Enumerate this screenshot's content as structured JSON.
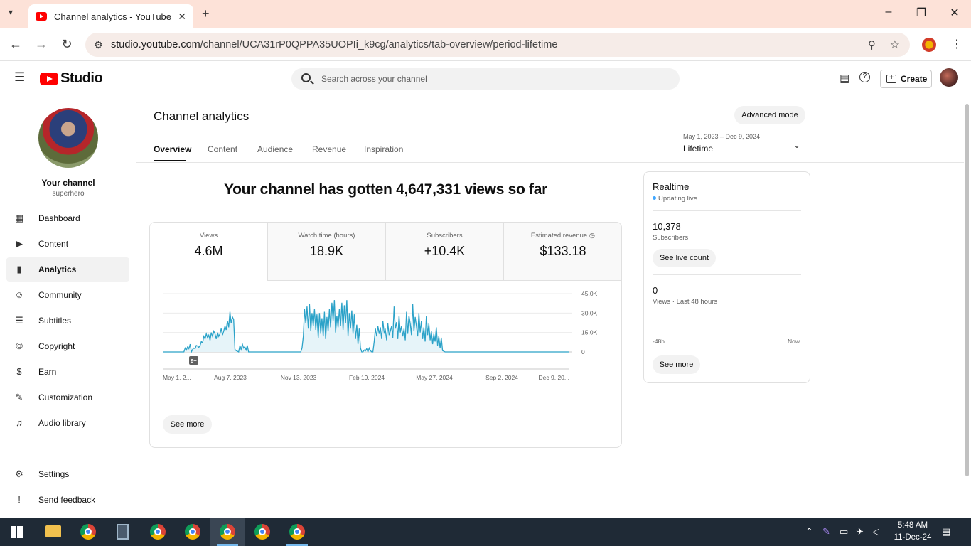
{
  "browser": {
    "tab_title": "Channel analytics - YouTube Studio",
    "url_domain": "studio.youtube.com",
    "url_path": "/channel/UCA31rP0QPPA35UOPIi_k9cg/analytics/tab-overview/period-lifetime"
  },
  "header": {
    "logo_text": "Studio",
    "search_placeholder": "Search across your channel",
    "create_label": "Create"
  },
  "sidebar": {
    "channel_title": "Your channel",
    "channel_handle": "superhero",
    "items": [
      {
        "label": "Dashboard",
        "icon": "dashboard-icon",
        "glyph": "▦"
      },
      {
        "label": "Content",
        "icon": "content-icon",
        "glyph": "▶"
      },
      {
        "label": "Analytics",
        "icon": "analytics-icon",
        "glyph": "▮"
      },
      {
        "label": "Community",
        "icon": "community-icon",
        "glyph": "☺"
      },
      {
        "label": "Subtitles",
        "icon": "subtitles-icon",
        "glyph": "☰"
      },
      {
        "label": "Copyright",
        "icon": "copyright-icon",
        "glyph": "©"
      },
      {
        "label": "Earn",
        "icon": "earn-icon",
        "glyph": "$"
      },
      {
        "label": "Customization",
        "icon": "customization-icon",
        "glyph": "✎"
      },
      {
        "label": "Audio library",
        "icon": "audio-library-icon",
        "glyph": "♫"
      }
    ],
    "bottom_items": [
      {
        "label": "Settings",
        "icon": "settings-icon",
        "glyph": "⚙"
      },
      {
        "label": "Send feedback",
        "icon": "feedback-icon",
        "glyph": "!"
      }
    ]
  },
  "main": {
    "title": "Channel analytics",
    "advanced_mode": "Advanced mode",
    "tabs": [
      "Overview",
      "Content",
      "Audience",
      "Revenue",
      "Inspiration"
    ],
    "period_range": "May 1, 2023 – Dec 9, 2024",
    "period_label": "Lifetime",
    "headline": "Your channel has gotten 4,647,331 views so far",
    "metrics": [
      {
        "label": "Views",
        "value": "4.6M"
      },
      {
        "label": "Watch time (hours)",
        "value": "18.9K"
      },
      {
        "label": "Subscribers",
        "value": "+10.4K"
      },
      {
        "label": "Estimated revenue",
        "value": "$133.18"
      }
    ],
    "see_more": "See more",
    "badge": "9+"
  },
  "realtime": {
    "title": "Realtime",
    "status": "Updating live",
    "subscribers_value": "10,378",
    "subscribers_label": "Subscribers",
    "see_live_count": "See live count",
    "views_value": "0",
    "views_label": "Views · Last 48 hours",
    "axis_start": "-48h",
    "axis_end": "Now",
    "see_more": "See more"
  },
  "chart_data": {
    "type": "area",
    "series": [
      {
        "name": "Views",
        "values": [
          0,
          0,
          0,
          0,
          0,
          0,
          0,
          0,
          0,
          0,
          0,
          0,
          0,
          0,
          0,
          0,
          0,
          0,
          3000,
          1500,
          4000,
          2500,
          6000,
          0,
          2000,
          3000,
          2500,
          5000,
          4500,
          3500,
          5000,
          8000,
          7000,
          12000,
          10000,
          14000,
          11000,
          13000,
          9000,
          15000,
          12000,
          16000,
          14000,
          10000,
          15000,
          12000,
          14000,
          18000,
          13000,
          16000,
          20000,
          17000,
          24000,
          19000,
          31000,
          22000,
          27000,
          25000,
          2000,
          1000,
          500,
          0,
          5000,
          2000,
          6000,
          3000,
          4000,
          1500,
          5000,
          0,
          0,
          0,
          0,
          0,
          0,
          0,
          0,
          0,
          0,
          0,
          0,
          0,
          0,
          0,
          0,
          0,
          0,
          0,
          0,
          0,
          0,
          0,
          0,
          0,
          0,
          0,
          0,
          0,
          0,
          0,
          0,
          0,
          0,
          0,
          0,
          0,
          0,
          0,
          0,
          0,
          0,
          0,
          3000,
          12000,
          33000,
          22000,
          35000,
          18000,
          37000,
          16000,
          30000,
          20000,
          33000,
          17000,
          29000,
          11000,
          30000,
          14000,
          26000,
          12000,
          31000,
          10000,
          27000,
          16000,
          33000,
          19000,
          38000,
          24000,
          40000,
          15000,
          28000,
          19000,
          33000,
          20000,
          38000,
          17000,
          36000,
          22000,
          40000,
          12000,
          30000,
          18000,
          32000,
          14000,
          29000,
          10000,
          21000,
          6000,
          18000,
          3000,
          0,
          0,
          1500,
          800,
          2500,
          0,
          3000,
          1000,
          0,
          0,
          8000,
          18000,
          12000,
          20000,
          14000,
          19000,
          10000,
          24000,
          15000,
          17000,
          9000,
          22000,
          13000,
          16000,
          20000,
          11000,
          35000,
          18000,
          23000,
          10000,
          28000,
          15000,
          20000,
          12000,
          18000,
          9000,
          31000,
          14000,
          28000,
          22000,
          13000,
          37000,
          16000,
          27000,
          20000,
          12000,
          30000,
          15000,
          24000,
          10000,
          19000,
          8000,
          28000,
          13000,
          22000,
          9000,
          16000,
          6000,
          14000,
          8000,
          19000,
          5000,
          12000,
          3000,
          11000,
          1000,
          500,
          0,
          0,
          0,
          0,
          0,
          0,
          0,
          0,
          0,
          0,
          0,
          0,
          0,
          0,
          0,
          0,
          0,
          0,
          0,
          0,
          0,
          0,
          0,
          0,
          0,
          0,
          0,
          0,
          0,
          0,
          0,
          0,
          0,
          0,
          0,
          0,
          0,
          0,
          0,
          0,
          0,
          0,
          0,
          0,
          0,
          0,
          0,
          0,
          0,
          0,
          0,
          0,
          0,
          0,
          0,
          0,
          0,
          0,
          0,
          0,
          0,
          0,
          0,
          0,
          0,
          0,
          0,
          0,
          0,
          0,
          0,
          0,
          0,
          0,
          0,
          0,
          0,
          0,
          0,
          0,
          0,
          0,
          0,
          0,
          0,
          0,
          0,
          0,
          0,
          0,
          0,
          0,
          0,
          0,
          0,
          0,
          0,
          0,
          0,
          0,
          0
        ]
      }
    ],
    "x_tick_labels": [
      "May 1, 2...",
      "Aug 7, 2023",
      "Nov 13, 2023",
      "Feb 19, 2024",
      "May 27, 2024",
      "Sep 2, 2024",
      "Dec 9, 20..."
    ],
    "y_tick_labels": [
      "45.0K",
      "30.0K",
      "15.0K",
      "0"
    ],
    "ylim": [
      0,
      45000
    ],
    "grid": true,
    "color": "#2ba2c8",
    "fill": "#e6f4f9"
  },
  "taskbar": {
    "time": "5:48 AM",
    "date": "11-Dec-24"
  }
}
